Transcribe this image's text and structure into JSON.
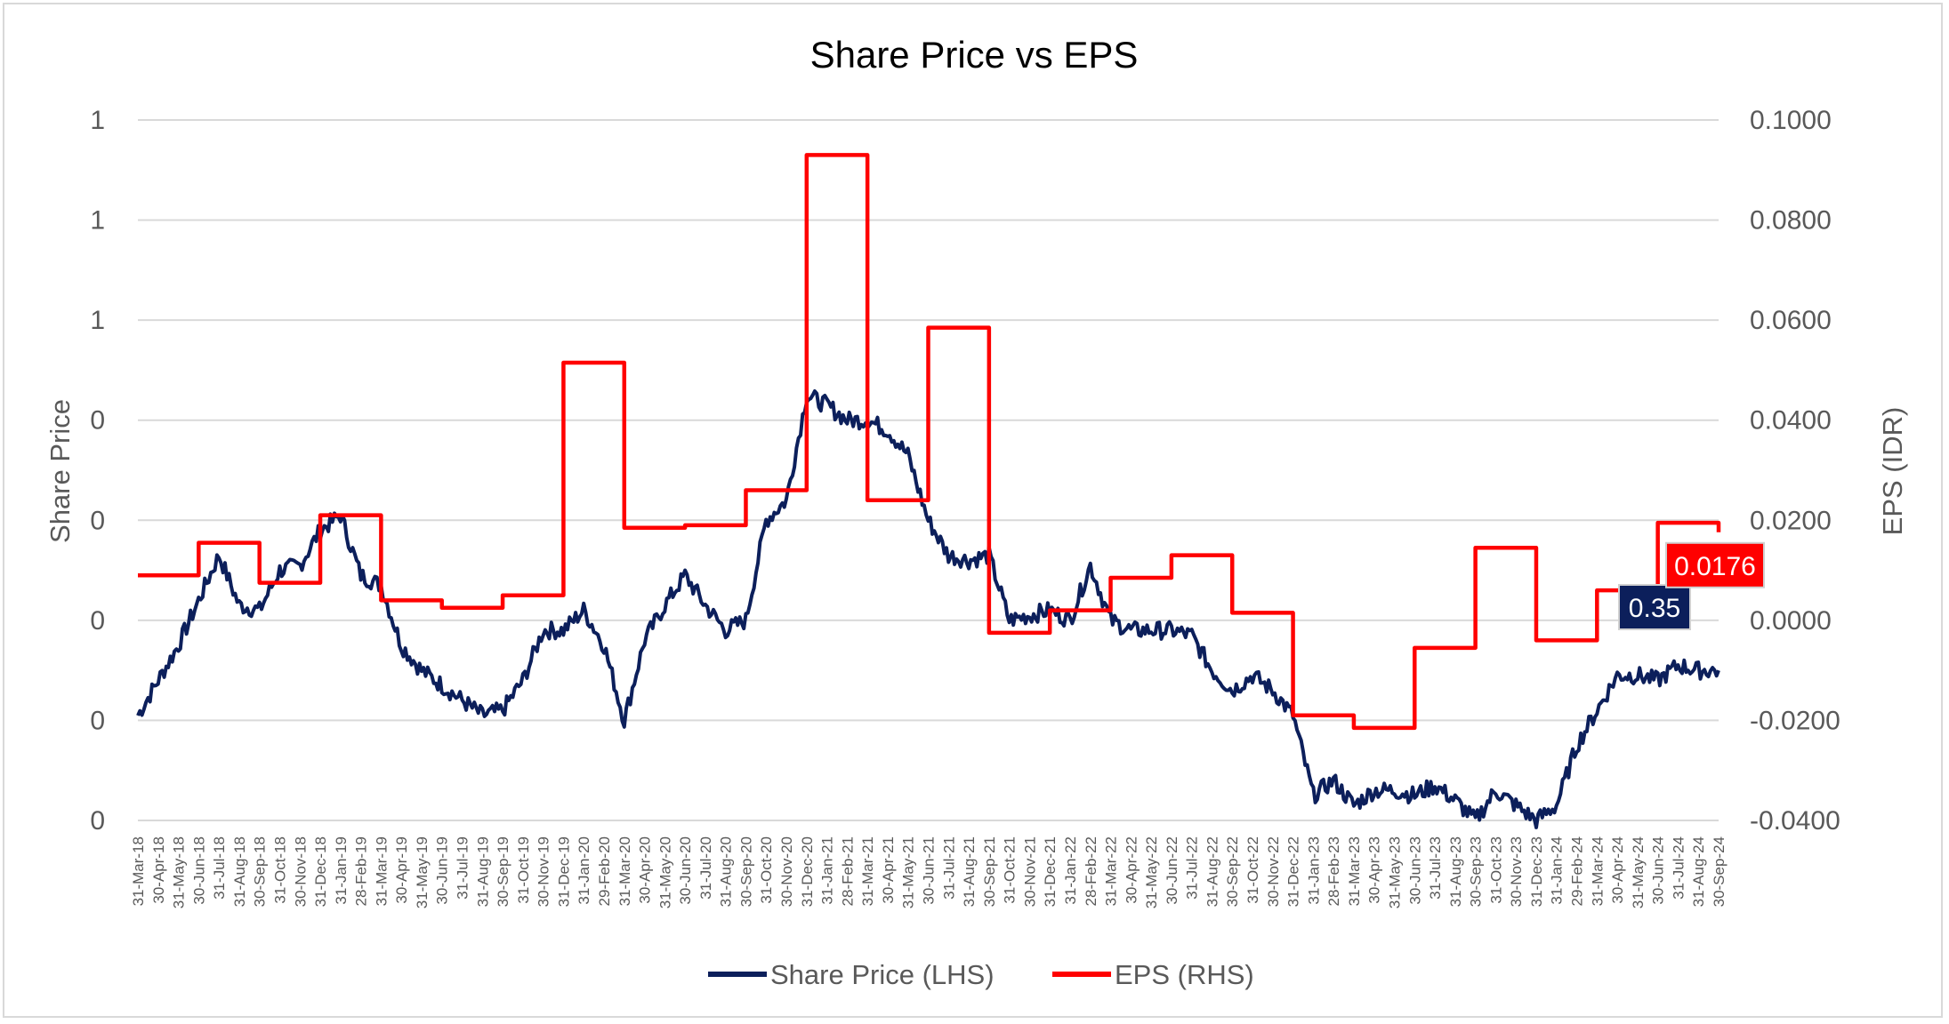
{
  "chart_data": {
    "type": "line",
    "title": "Share Price vs EPS",
    "y_left": {
      "label": "Share Price",
      "tick_labels": [
        "0",
        "0",
        "0",
        "0",
        "0",
        "1",
        "1",
        "1"
      ],
      "range": [
        0.0,
        1.4
      ]
    },
    "y_right": {
      "label": "EPS (IDR)",
      "tick_labels": [
        "-0.0400",
        "-0.0200",
        "0.0000",
        "0.0200",
        "0.0400",
        "0.0600",
        "0.0800",
        "0.1000"
      ],
      "range": [
        -0.04,
        0.1
      ]
    },
    "x_tick_labels": [
      "31-Mar-18",
      "30-Apr-18",
      "31-May-18",
      "30-Jun-18",
      "31-Jul-18",
      "31-Aug-18",
      "30-Sep-18",
      "31-Oct-18",
      "30-Nov-18",
      "31-Dec-18",
      "31-Jan-19",
      "28-Feb-19",
      "31-Mar-19",
      "30-Apr-19",
      "31-May-19",
      "30-Jun-19",
      "31-Jul-19",
      "31-Aug-19",
      "30-Sep-19",
      "31-Oct-19",
      "30-Nov-19",
      "31-Dec-19",
      "31-Jan-20",
      "29-Feb-20",
      "31-Mar-20",
      "30-Apr-20",
      "31-May-20",
      "30-Jun-20",
      "31-Jul-20",
      "31-Aug-20",
      "30-Sep-20",
      "31-Oct-20",
      "30-Nov-20",
      "31-Dec-20",
      "31-Jan-21",
      "28-Feb-21",
      "31-Mar-21",
      "30-Apr-21",
      "31-May-21",
      "30-Jun-21",
      "31-Jul-21",
      "31-Aug-21",
      "30-Sep-21",
      "31-Oct-21",
      "30-Nov-21",
      "31-Dec-21",
      "31-Jan-22",
      "28-Feb-22",
      "31-Mar-22",
      "30-Apr-22",
      "31-May-22",
      "30-Jun-22",
      "31-Jul-22",
      "31-Aug-22",
      "30-Sep-22",
      "31-Oct-22",
      "30-Nov-22",
      "31-Dec-22",
      "31-Jan-23",
      "28-Feb-23",
      "31-Mar-23",
      "30-Apr-23",
      "31-May-23",
      "30-Jun-23",
      "31-Jul-23",
      "31-Aug-23",
      "30-Sep-23",
      "31-Oct-23",
      "30-Nov-23",
      "31-Dec-23",
      "31-Jan-24",
      "29-Feb-24",
      "31-Mar-24",
      "30-Apr-24",
      "31-May-24",
      "30-Jun-24",
      "31-Jul-24",
      "31-Aug-24",
      "30-Sep-24"
    ],
    "series": [
      {
        "name": "Share Price (LHS)",
        "axis": "left",
        "color": "#0c1f5b",
        "x": [
          "31-Mar-18",
          "30-Apr-18",
          "31-May-18",
          "30-Jun-18",
          "31-Jul-18",
          "31-Aug-18",
          "30-Sep-18",
          "31-Oct-18",
          "30-Nov-18",
          "31-Dec-18",
          "31-Jan-19",
          "28-Feb-19",
          "31-Mar-19",
          "30-Apr-19",
          "31-May-19",
          "30-Jun-19",
          "31-Jul-19",
          "31-Aug-19",
          "30-Sep-19",
          "31-Oct-19",
          "30-Nov-19",
          "31-Dec-19",
          "31-Jan-20",
          "29-Feb-20",
          "31-Mar-20",
          "30-Apr-20",
          "31-May-20",
          "30-Jun-20",
          "31-Jul-20",
          "31-Aug-20",
          "30-Sep-20",
          "31-Oct-20",
          "30-Nov-20",
          "31-Dec-20",
          "31-Jan-21",
          "28-Feb-21",
          "31-Mar-21",
          "30-Apr-21",
          "31-May-21",
          "30-Jun-21",
          "31-Jul-21",
          "31-Aug-21",
          "30-Sep-21",
          "31-Oct-21",
          "30-Nov-21",
          "31-Dec-21",
          "31-Jan-22",
          "28-Feb-22",
          "31-Mar-22",
          "30-Apr-22",
          "31-May-22",
          "30-Jun-22",
          "31-Jul-22",
          "31-Aug-22",
          "30-Sep-22",
          "31-Oct-22",
          "30-Nov-22",
          "31-Dec-22",
          "31-Jan-23",
          "28-Feb-23",
          "31-Mar-23",
          "30-Apr-23",
          "31-May-23",
          "30-Jun-23",
          "31-Jul-23",
          "31-Aug-23",
          "30-Sep-23",
          "31-Oct-23",
          "30-Nov-23",
          "31-Dec-23",
          "31-Jan-24",
          "29-Feb-24",
          "31-Mar-24",
          "30-Apr-24",
          "31-May-24",
          "30-Jun-24",
          "31-Jul-24",
          "31-Aug-24",
          "30-Sep-24"
        ],
        "values": [
          0.21,
          0.28,
          0.35,
          0.44,
          0.53,
          0.43,
          0.42,
          0.5,
          0.51,
          0.58,
          0.61,
          0.49,
          0.47,
          0.35,
          0.3,
          0.27,
          0.24,
          0.21,
          0.22,
          0.28,
          0.38,
          0.38,
          0.42,
          0.35,
          0.2,
          0.36,
          0.43,
          0.49,
          0.43,
          0.38,
          0.4,
          0.6,
          0.64,
          0.85,
          0.83,
          0.8,
          0.8,
          0.78,
          0.73,
          0.6,
          0.53,
          0.52,
          0.53,
          0.4,
          0.41,
          0.42,
          0.4,
          0.51,
          0.4,
          0.38,
          0.38,
          0.38,
          0.37,
          0.3,
          0.26,
          0.29,
          0.26,
          0.21,
          0.05,
          0.08,
          0.03,
          0.06,
          0.06,
          0.05,
          0.07,
          0.04,
          0.0,
          0.06,
          0.03,
          0.0,
          0.03,
          0.15,
          0.22,
          0.29,
          0.29,
          0.28,
          0.31,
          0.3,
          0.3
        ]
      },
      {
        "name": "EPS (RHS)",
        "axis": "right",
        "color": "#ff0000",
        "x": [
          "31-Mar-18",
          "30-Jun-18",
          "30-Sep-18",
          "31-Dec-18",
          "31-Mar-19",
          "30-Jun-19",
          "30-Sep-19",
          "31-Dec-19",
          "31-Mar-20",
          "30-Jun-20",
          "30-Sep-20",
          "31-Dec-20",
          "31-Mar-21",
          "30-Jun-21",
          "30-Sep-21",
          "31-Dec-21",
          "31-Mar-22",
          "30-Jun-22",
          "30-Sep-22",
          "31-Dec-22",
          "31-Mar-23",
          "30-Jun-23",
          "30-Sep-23",
          "31-Dec-23",
          "31-Mar-24",
          "30-Jun-24"
        ],
        "values": [
          0.009,
          0.0155,
          0.0075,
          0.021,
          0.004,
          0.0025,
          0.005,
          0.0515,
          0.0185,
          0.019,
          0.026,
          0.093,
          0.024,
          0.0585,
          -0.0025,
          0.002,
          0.0085,
          0.013,
          0.0015,
          -0.019,
          -0.0215,
          -0.0055,
          0.0145,
          -0.004,
          0.006,
          0.0195
        ],
        "last_value": 0.0176,
        "step": true
      }
    ],
    "annotations": [
      {
        "series": "Share Price (LHS)",
        "label": "0.35",
        "color": "#0c1f5b"
      },
      {
        "series": "EPS (RHS)",
        "label": "0.0176",
        "color": "#ff0000"
      }
    ],
    "legend": {
      "placement": "bottom",
      "items": [
        "Share Price (LHS)",
        "EPS (RHS)"
      ]
    },
    "grid": true
  }
}
